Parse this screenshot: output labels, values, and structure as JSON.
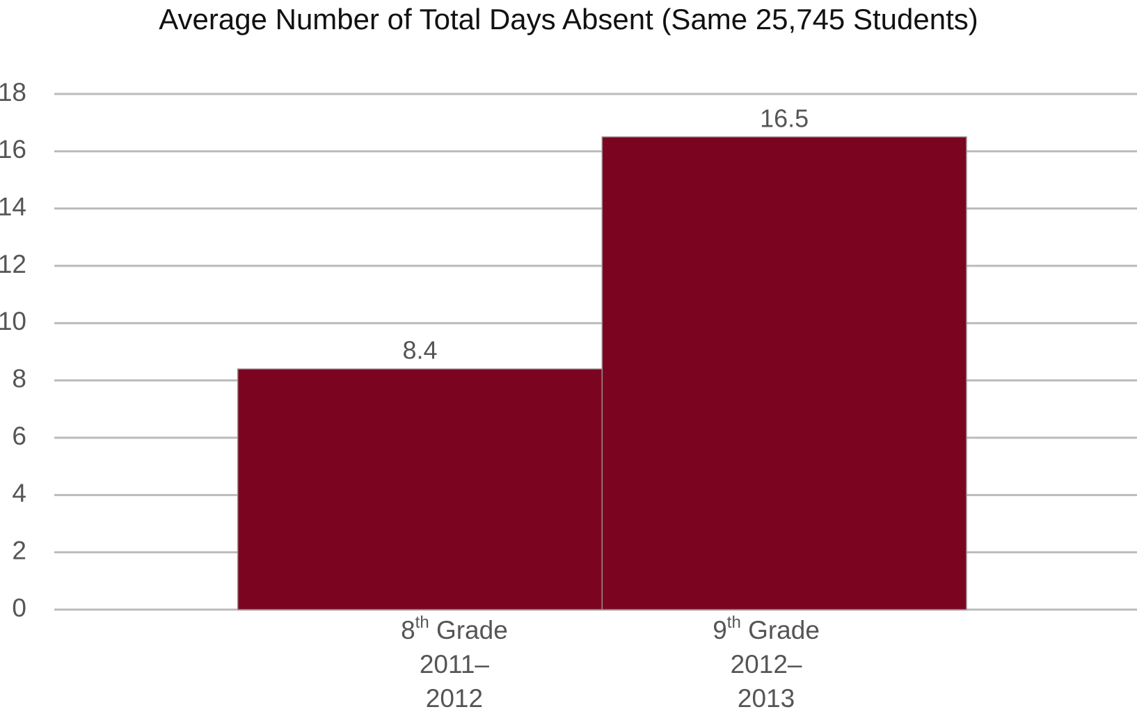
{
  "chart_data": {
    "type": "bar",
    "title": "Average Number of Total Days Absent (Same 25,745 Students)",
    "categories": [
      "8th Grade 2011–2012",
      "9th Grade 2012–2013"
    ],
    "values": [
      8.4,
      16.5
    ],
    "color": "#7b0520",
    "ylim": [
      0,
      18
    ],
    "yticks": [
      0,
      2,
      4,
      6,
      8,
      10,
      12,
      14,
      16,
      18
    ],
    "grid": true
  }
}
